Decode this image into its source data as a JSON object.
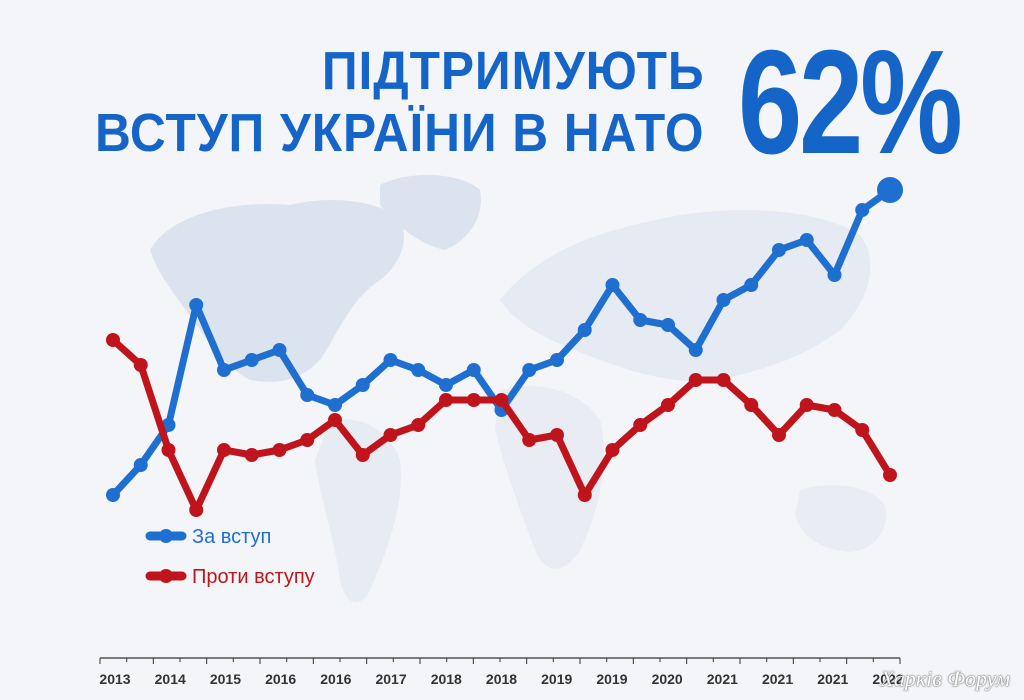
{
  "title": {
    "line1": "ПІДТРИМУЮТЬ",
    "line2": "ВСТУП УКРАЇНИ В НАТО",
    "highlight": "62%"
  },
  "watermark": "Харків Форум",
  "colors": {
    "support": "#1f6fd1",
    "against": "#c0141c",
    "title": "#1565c8",
    "map": "#d3ddec"
  },
  "chart_data": {
    "type": "line",
    "x_tick_labels": [
      "2013",
      "2014",
      "2015",
      "2016",
      "2016",
      "2017",
      "2018",
      "2018",
      "2019",
      "2019",
      "2020",
      "2021",
      "2021",
      "2021",
      "2022"
    ],
    "series": [
      {
        "name": "За вступ",
        "color": "#1f6fd1",
        "values": [
          13,
          19,
          27,
          51,
          38,
          40,
          42,
          33,
          31,
          35,
          40,
          38,
          35,
          38,
          30,
          38,
          40,
          46,
          55,
          48,
          47,
          42,
          52,
          55,
          62,
          64,
          57,
          70,
          74
        ]
      },
      {
        "name": "Проти вступу",
        "color": "#c0141c",
        "values": [
          44,
          39,
          22,
          10,
          22,
          21,
          22,
          24,
          28,
          21,
          25,
          27,
          32,
          32,
          32,
          24,
          25,
          13,
          22,
          27,
          31,
          36,
          36,
          31,
          25,
          31,
          30,
          26,
          17
        ]
      }
    ],
    "ylim": [
      0,
      80
    ],
    "legend_position": "bottom-left",
    "grid": false
  }
}
